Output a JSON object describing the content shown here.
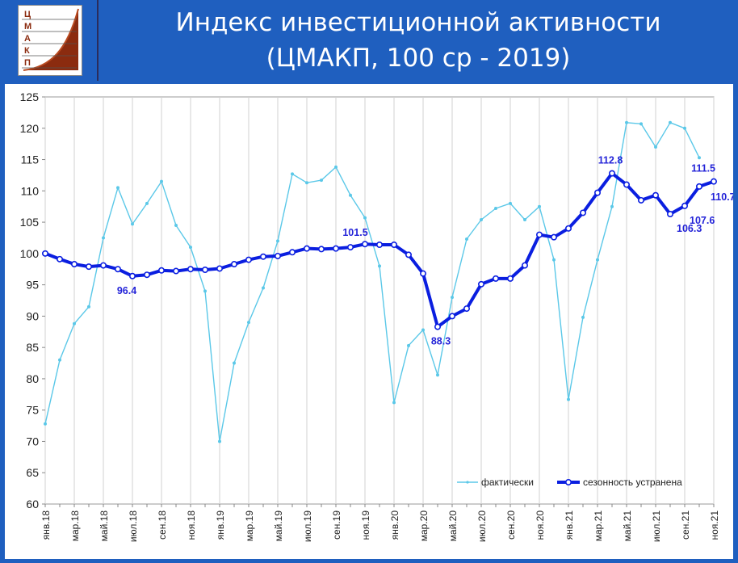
{
  "header": {
    "title_line1": "Индекс инвестиционной активности",
    "title_line2": "(ЦМАКП, 100 ср - 2019)",
    "logo_letters": [
      "Ц",
      "М",
      "А",
      "К",
      "П"
    ]
  },
  "chart_data": {
    "type": "line",
    "ylim": [
      60,
      125
    ],
    "yticks": [
      60,
      65,
      70,
      75,
      80,
      85,
      90,
      95,
      100,
      105,
      110,
      115,
      120,
      125
    ],
    "x": [
      "янв.18",
      "фев.18",
      "мар.18",
      "апр.18",
      "май.18",
      "июн.18",
      "июл.18",
      "авг.18",
      "сен.18",
      "окт.18",
      "ноя.18",
      "дек.18",
      "янв.19",
      "фев.19",
      "мар.19",
      "апр.19",
      "май.19",
      "июн.19",
      "июл.19",
      "авг.19",
      "сен.19",
      "окт.19",
      "ноя.19",
      "дек.19",
      "янв.20",
      "фев.20",
      "мар.20",
      "апр.20",
      "май.20",
      "июн.20",
      "июл.20",
      "авг.20",
      "сен.20",
      "окт.20",
      "ноя.20",
      "дек.20",
      "янв.21",
      "фев.21",
      "мар.21",
      "апр.21",
      "май.21",
      "июн.21",
      "июл.21",
      "авг.21",
      "сен.21",
      "окт.21",
      "ноя.21"
    ],
    "xticklabels": [
      "янв.18",
      "",
      "мар.18",
      "",
      "май.18",
      "",
      "июл.18",
      "",
      "сен.18",
      "",
      "ноя.18",
      "",
      "янв.19",
      "",
      "мар.19",
      "",
      "май.19",
      "",
      "июл.19",
      "",
      "сен.19",
      "",
      "ноя.19",
      "",
      "янв.20",
      "",
      "мар.20",
      "",
      "май.20",
      "",
      "июл.20",
      "",
      "сен.20",
      "",
      "ноя.20",
      "",
      "янв.21",
      "",
      "мар.21",
      "",
      "май.21",
      "",
      "июл.21",
      "",
      "сен.21",
      "",
      "ноя.21"
    ],
    "series": [
      {
        "name": "фактически",
        "color": "#5bc8e8",
        "values": [
          72.8,
          83.0,
          88.8,
          91.5,
          102.5,
          110.5,
          104.7,
          108.0,
          111.5,
          104.5,
          101.0,
          94.0,
          70.0,
          82.5,
          89.0,
          94.5,
          102.0,
          112.7,
          111.3,
          111.7,
          113.8,
          109.3,
          105.7,
          98.0,
          76.2,
          85.3,
          87.8,
          80.6,
          93.0,
          102.3,
          105.4,
          107.2,
          108.0,
          105.4,
          107.5,
          99.0,
          76.7,
          89.8,
          99.0,
          107.5,
          120.9,
          120.7,
          117.0,
          120.9,
          120.0,
          115.3,
          null
        ]
      },
      {
        "name": "сезонность устранена",
        "color": "#0a1ee0",
        "values": [
          100.0,
          99.1,
          98.3,
          97.9,
          98.1,
          97.5,
          96.4,
          96.6,
          97.3,
          97.2,
          97.5,
          97.4,
          97.6,
          98.3,
          99.0,
          99.5,
          99.6,
          100.2,
          100.8,
          100.7,
          100.8,
          101.0,
          101.5,
          101.4,
          101.4,
          99.8,
          96.8,
          88.3,
          90.0,
          91.2,
          95.1,
          96.0,
          96.0,
          98.1,
          103.0,
          102.6,
          104.0,
          106.5,
          109.7,
          112.8,
          111.0,
          108.5,
          109.3,
          106.3,
          107.6,
          110.7,
          111.5
        ]
      }
    ],
    "data_labels": [
      {
        "series": 1,
        "index": 6,
        "text": "96.4"
      },
      {
        "series": 1,
        "index": 22,
        "text": "101.5"
      },
      {
        "series": 1,
        "index": 27,
        "text": "88.3"
      },
      {
        "series": 1,
        "index": 39,
        "text": "112.8"
      },
      {
        "series": 1,
        "index": 43,
        "text": "106.3"
      },
      {
        "series": 1,
        "index": 44,
        "text": "107.6"
      },
      {
        "series": 1,
        "index": 45,
        "text": "110.7"
      },
      {
        "series": 1,
        "index": 46,
        "text": "111.5"
      }
    ],
    "grid": "vertical",
    "legend": "bottom-right"
  }
}
